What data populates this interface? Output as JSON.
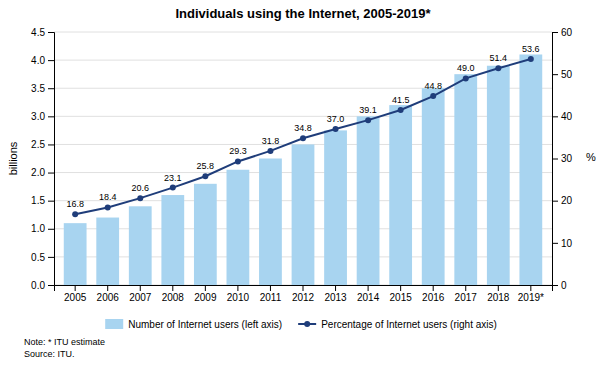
{
  "chart_data": {
    "type": "bar",
    "title": "Individuals using the Internet, 2005-2019*",
    "categories": [
      "2005",
      "2006",
      "2007",
      "2008",
      "2009",
      "2010",
      "2011",
      "2012",
      "2013",
      "2014",
      "2015",
      "2016",
      "2017",
      "2018",
      "2019*"
    ],
    "series": [
      {
        "name": "Number of Internet users (left axis)",
        "type": "bar",
        "color": "#a8d4f0",
        "values": [
          1.1,
          1.2,
          1.4,
          1.6,
          1.8,
          2.05,
          2.25,
          2.5,
          2.75,
          3.0,
          3.2,
          3.5,
          3.75,
          3.9,
          4.1
        ]
      },
      {
        "name": "Percentage of Internet users (right axis)",
        "type": "line",
        "axis": "y2",
        "color": "#1f3d7a",
        "marker": "circle",
        "data_labels": true,
        "values": [
          16.8,
          18.4,
          20.6,
          23.1,
          25.8,
          29.3,
          31.8,
          34.8,
          37.0,
          39.1,
          41.5,
          44.8,
          49.0,
          51.4,
          53.6
        ],
        "value_labels": [
          "16.8",
          "18.4",
          "20.6",
          "23.1",
          "25.8",
          "29.3",
          "31.8",
          "34.8",
          "37.0",
          "39.1",
          "41.5",
          "44.8",
          "49.0",
          "51.4",
          "53.6"
        ]
      }
    ],
    "ylabel": "billions",
    "y2label": "%",
    "ylim": [
      0,
      4.5
    ],
    "yticks": [
      {
        "value": 0,
        "label": "0.0"
      },
      0.5,
      {
        "value": 1,
        "label": "1.0"
      },
      1.5,
      {
        "value": 2,
        "label": "2.0"
      },
      2.5,
      {
        "value": 3,
        "label": "3.0"
      },
      3.5,
      {
        "value": 4,
        "label": "4.0"
      },
      4.5
    ],
    "y2lim": [
      0,
      60
    ],
    "y2ticks": [
      0,
      10,
      20,
      30,
      40,
      50,
      60
    ],
    "grid": true,
    "legend": "bottom",
    "note": "Note: * ITU estimate\nSource: ITU."
  }
}
